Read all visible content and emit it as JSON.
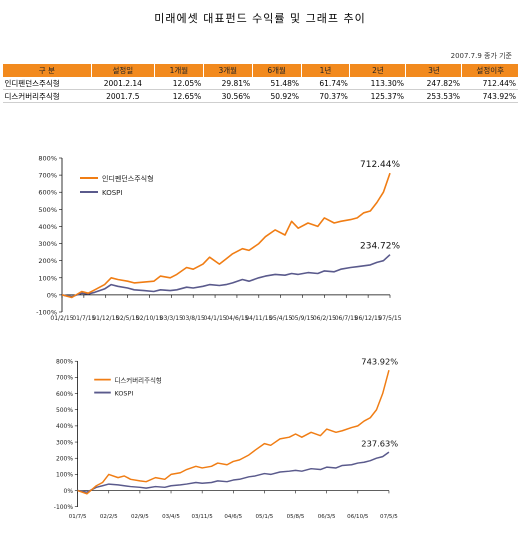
{
  "page": {
    "title": "미래에셋 대표펀드 수익률 및 그래프 추이",
    "note": "2007.7.9 종가 기준"
  },
  "table": {
    "headers": [
      "구 분",
      "설정일",
      "1개월",
      "3개월",
      "6개월",
      "1년",
      "2년",
      "3년",
      "설정이후"
    ],
    "rows": [
      [
        "인디펜던스주식형",
        "2001.2.14",
        "12.05%",
        "29.81%",
        "51.48%",
        "61.74%",
        "113.30%",
        "247.82%",
        "712.44%"
      ],
      [
        "디스커버리주식형",
        "2001.7.5",
        "12.65%",
        "30.56%",
        "50.92%",
        "70.37%",
        "125.37%",
        "253.53%",
        "743.92%"
      ]
    ]
  },
  "colors": {
    "fund": "#f07d14",
    "kospi": "#5a5a8c",
    "header": "#f28a1e"
  },
  "chart_data": [
    {
      "type": "line",
      "series": [
        {
          "name": "인디펜던스주식형",
          "end_label": "712.44%",
          "x": [
            0,
            0.03,
            0.06,
            0.08,
            0.1,
            0.13,
            0.15,
            0.17,
            0.2,
            0.22,
            0.25,
            0.28,
            0.3,
            0.33,
            0.35,
            0.38,
            0.4,
            0.43,
            0.45,
            0.48,
            0.5,
            0.52,
            0.55,
            0.57,
            0.6,
            0.62,
            0.65,
            0.68,
            0.7,
            0.72,
            0.75,
            0.78,
            0.8,
            0.83,
            0.85,
            0.88,
            0.9,
            0.92,
            0.94,
            0.96,
            0.98,
            1.0
          ],
          "values": [
            0,
            -15,
            20,
            10,
            30,
            60,
            100,
            90,
            80,
            70,
            75,
            80,
            110,
            100,
            120,
            160,
            150,
            180,
            220,
            180,
            210,
            240,
            270,
            260,
            300,
            340,
            380,
            350,
            430,
            390,
            420,
            400,
            450,
            420,
            430,
            440,
            450,
            480,
            490,
            540,
            600,
            712
          ]
        },
        {
          "name": "KOSPI",
          "end_label": "234.72%",
          "x": [
            0,
            0.03,
            0.06,
            0.08,
            0.1,
            0.13,
            0.15,
            0.17,
            0.2,
            0.22,
            0.25,
            0.28,
            0.3,
            0.33,
            0.35,
            0.38,
            0.4,
            0.43,
            0.45,
            0.48,
            0.5,
            0.52,
            0.55,
            0.57,
            0.6,
            0.62,
            0.65,
            0.68,
            0.7,
            0.72,
            0.75,
            0.78,
            0.8,
            0.83,
            0.85,
            0.88,
            0.9,
            0.92,
            0.94,
            0.96,
            0.98,
            1.0
          ],
          "values": [
            0,
            -10,
            10,
            5,
            15,
            35,
            60,
            50,
            40,
            30,
            25,
            20,
            30,
            25,
            30,
            45,
            40,
            50,
            60,
            55,
            60,
            70,
            90,
            80,
            100,
            110,
            120,
            115,
            125,
            120,
            130,
            125,
            140,
            135,
            150,
            160,
            165,
            170,
            175,
            190,
            200,
            235
          ]
        }
      ],
      "x_ticks": [
        "01/2/15",
        "01/7/15",
        "01/12/15",
        "02/5/15",
        "02/10/15",
        "03/3/15",
        "03/8/15",
        "04/1/15",
        "04/6/15",
        "04/11/15",
        "05/4/15",
        "05/9/15",
        "06/2/15",
        "06/7/15",
        "06/12/15",
        "07/5/15"
      ],
      "y_ticks": [
        "-100%",
        "0%",
        "100%",
        "200%",
        "300%",
        "400%",
        "500%",
        "600%",
        "700%",
        "800%"
      ],
      "ylim": [
        -100,
        800
      ],
      "legend": "top-left"
    },
    {
      "type": "line",
      "series": [
        {
          "name": "디스커버리주식형",
          "end_label": "743.92%",
          "x": [
            0,
            0.03,
            0.06,
            0.08,
            0.1,
            0.13,
            0.15,
            0.17,
            0.2,
            0.22,
            0.25,
            0.28,
            0.3,
            0.33,
            0.35,
            0.38,
            0.4,
            0.43,
            0.45,
            0.48,
            0.5,
            0.52,
            0.55,
            0.57,
            0.6,
            0.62,
            0.65,
            0.68,
            0.7,
            0.72,
            0.75,
            0.78,
            0.8,
            0.83,
            0.85,
            0.88,
            0.9,
            0.92,
            0.94,
            0.96,
            0.98,
            1.0
          ],
          "values": [
            0,
            -20,
            30,
            50,
            100,
            80,
            90,
            70,
            60,
            55,
            80,
            70,
            100,
            110,
            130,
            150,
            140,
            150,
            170,
            160,
            180,
            190,
            220,
            250,
            290,
            280,
            320,
            330,
            350,
            330,
            360,
            340,
            380,
            360,
            370,
            390,
            400,
            430,
            450,
            500,
            600,
            744
          ]
        },
        {
          "name": "KOSPI",
          "end_label": "237.63%",
          "x": [
            0,
            0.03,
            0.06,
            0.08,
            0.1,
            0.13,
            0.15,
            0.17,
            0.2,
            0.22,
            0.25,
            0.28,
            0.3,
            0.33,
            0.35,
            0.38,
            0.4,
            0.43,
            0.45,
            0.48,
            0.5,
            0.52,
            0.55,
            0.57,
            0.6,
            0.62,
            0.65,
            0.68,
            0.7,
            0.72,
            0.75,
            0.78,
            0.8,
            0.83,
            0.85,
            0.88,
            0.9,
            0.92,
            0.94,
            0.96,
            0.98,
            1.0
          ],
          "values": [
            0,
            -10,
            20,
            30,
            40,
            35,
            30,
            25,
            20,
            15,
            25,
            20,
            30,
            35,
            40,
            50,
            45,
            50,
            60,
            55,
            65,
            70,
            85,
            90,
            105,
            100,
            115,
            120,
            125,
            120,
            135,
            130,
            145,
            140,
            155,
            160,
            170,
            175,
            185,
            200,
            210,
            238
          ]
        }
      ],
      "x_ticks": [
        "01/7/5",
        "02/2/5",
        "02/9/5",
        "03/4/5",
        "03/11/5",
        "04/6/5",
        "05/1/5",
        "05/8/5",
        "06/3/5",
        "06/10/5",
        "07/5/5"
      ],
      "y_ticks": [
        "-100%",
        "0%",
        "100%",
        "200%",
        "300%",
        "400%",
        "500%",
        "600%",
        "700%",
        "800%"
      ],
      "ylim": [
        -100,
        800
      ],
      "legend": "top-left"
    }
  ]
}
